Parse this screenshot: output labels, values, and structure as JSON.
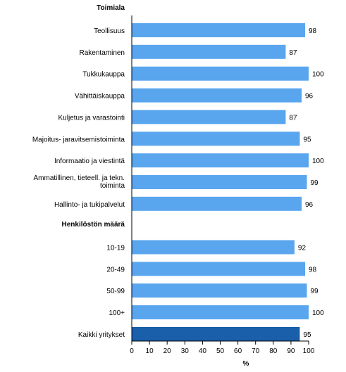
{
  "chart_data": {
    "type": "bar",
    "orientation": "horizontal",
    "groups": [
      {
        "title": "Toimiala",
        "categories": [
          "Teollisuus",
          "Rakentaminen",
          "Tukkukauppa",
          "Vähittäiskauppa",
          "Kuljetus ja varastointi",
          "Majoitus- jaravitsemistoiminta",
          "Informaatio ja viestintä",
          [
            "Ammatillinen, tieteell. ja tekn.",
            "toiminta"
          ],
          "Hallinto- ja tukipalvelut"
        ],
        "values": [
          98,
          87,
          100,
          96,
          87,
          95,
          100,
          99,
          96
        ]
      },
      {
        "title": "Henkilöstön määrä",
        "categories": [
          "10-19",
          "20-49",
          "50-99",
          "100+"
        ],
        "values": [
          92,
          98,
          99,
          100
        ]
      },
      {
        "title": "",
        "categories": [
          "Kaikki yritykset"
        ],
        "values": [
          95
        ],
        "highlight": true
      }
    ],
    "xlabel": "%",
    "xlim": [
      0,
      100
    ],
    "xticks": [
      0,
      10,
      20,
      30,
      40,
      50,
      60,
      70,
      80,
      90,
      100
    ],
    "grid": false,
    "colors": {
      "bar": "#5aa6ee",
      "highlight": "#1a5faa"
    }
  }
}
